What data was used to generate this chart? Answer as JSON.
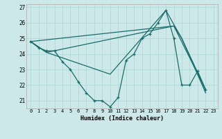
{
  "xlabel": "Humidex (Indice chaleur)",
  "background_color": "#cde8e8",
  "grid_color": "#b0d8d8",
  "line_color": "#1a6b6b",
  "xlim": [
    -0.5,
    23.5
  ],
  "ylim": [
    20.5,
    27.2
  ],
  "xticks": [
    0,
    1,
    2,
    3,
    4,
    5,
    6,
    7,
    8,
    9,
    10,
    11,
    12,
    13,
    14,
    15,
    16,
    17,
    18,
    19,
    20,
    21,
    22,
    23
  ],
  "yticks": [
    21,
    22,
    23,
    24,
    25,
    26,
    27
  ],
  "series1_x": [
    0,
    1,
    2,
    3,
    4,
    5,
    6,
    7,
    8,
    9,
    10,
    11,
    12,
    13,
    14,
    15,
    16,
    17,
    18,
    19,
    20,
    21,
    22
  ],
  "series1_y": [
    24.8,
    24.4,
    24.2,
    24.2,
    23.5,
    23.0,
    22.2,
    21.5,
    21.0,
    21.0,
    20.6,
    21.2,
    23.6,
    24.0,
    25.0,
    25.3,
    26.0,
    26.8,
    25.0,
    22.0,
    22.0,
    22.9,
    21.7
  ],
  "series2_x": [
    0,
    18,
    22
  ],
  "series2_y": [
    24.8,
    25.8,
    21.7
  ],
  "series3_x": [
    0,
    2,
    10,
    17,
    19,
    22
  ],
  "series3_y": [
    24.8,
    24.1,
    22.7,
    26.8,
    25.0,
    21.7
  ],
  "series4_x": [
    0,
    2,
    18,
    19,
    22
  ],
  "series4_y": [
    24.8,
    24.1,
    25.8,
    25.0,
    21.5
  ]
}
